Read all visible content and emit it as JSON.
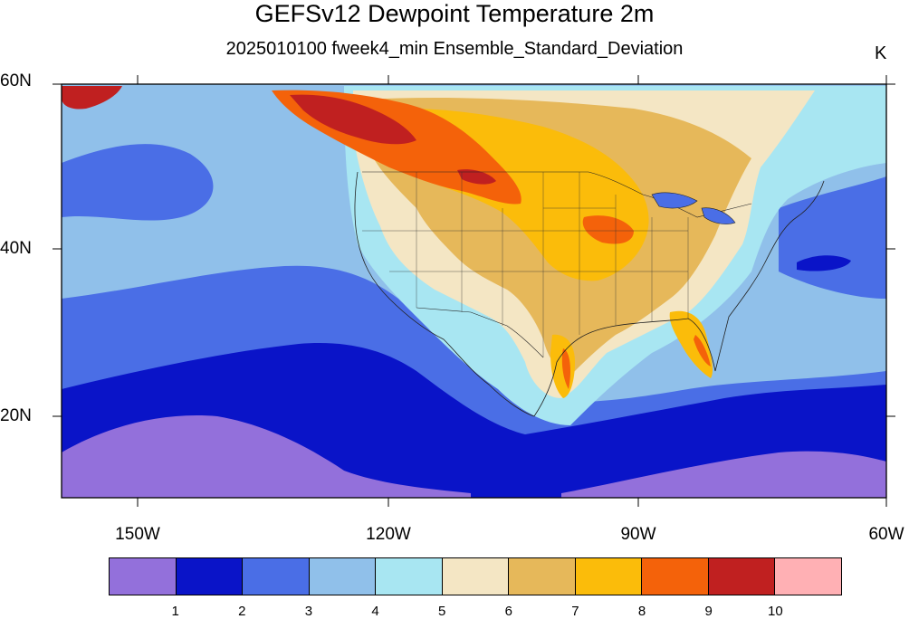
{
  "title": "GEFSv12 Dewpoint Temperature 2m",
  "subtitle": "2025010100 fweek4_min Ensemble_Standard_Deviation",
  "units": "K",
  "lon_labels": [
    "150W",
    "120W",
    "90W",
    "60W"
  ],
  "lat_labels": [
    "60N",
    "40N",
    "20N"
  ],
  "colorbar": {
    "colors": [
      "#9370db",
      "#0a14c8",
      "#4a6ee6",
      "#90c0ea",
      "#a8e6f2",
      "#f4e6c4",
      "#e6b85a",
      "#fbbc0a",
      "#f4620a",
      "#c02020",
      "#ffb0b4"
    ],
    "labels": [
      "1",
      "2",
      "3",
      "4",
      "5",
      "6",
      "7",
      "8",
      "9",
      "10"
    ]
  },
  "legend_colors": {
    "purple": "#9370db",
    "dark_blue": "#0a14c8",
    "blue": "#4a6ee6",
    "light_blue": "#90c0ea",
    "cyan": "#a8e6f2",
    "tan": "#f4e6c4",
    "gold": "#e6b85a",
    "orange": "#fbbc0a",
    "dark_orange": "#f4620a",
    "red": "#c02020",
    "pink": "#ffb0b4"
  }
}
